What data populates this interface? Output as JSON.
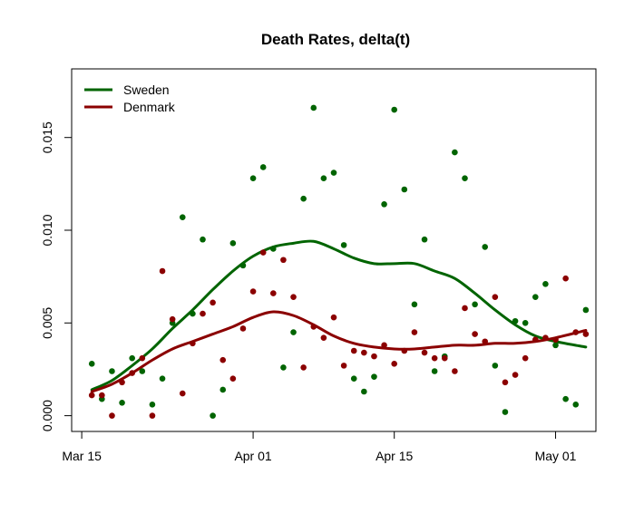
{
  "chart_data": {
    "type": "scatter",
    "title": "Death Rates, delta(t)",
    "xlabel": "",
    "ylabel": "",
    "x_tick_labels": [
      {
        "date": "2020-03-15",
        "label": "Mar 15"
      },
      {
        "date": "2020-04-01",
        "label": "Apr 01"
      },
      {
        "date": "2020-04-15",
        "label": "Apr 15"
      },
      {
        "date": "2020-05-01",
        "label": "May 01"
      }
    ],
    "y_tick_labels": [
      {
        "value": 0.0,
        "label": "0.000"
      },
      {
        "value": 0.005,
        "label": "0.005"
      },
      {
        "value": 0.01,
        "label": "0.010"
      },
      {
        "value": 0.015,
        "label": "0.015"
      }
    ],
    "xlim": [
      "2020-03-14",
      "2020-05-05"
    ],
    "ylim": [
      -0.00085,
      0.0187
    ],
    "grid": false,
    "legend": "top-left",
    "series": [
      {
        "name": "Sweden",
        "color": "#006400",
        "points": [
          [
            "2020-03-16",
            0.0028
          ],
          [
            "2020-03-17",
            0.0009
          ],
          [
            "2020-03-18",
            0.0024
          ],
          [
            "2020-03-19",
            0.0007
          ],
          [
            "2020-03-20",
            0.0031
          ],
          [
            "2020-03-21",
            0.0024
          ],
          [
            "2020-03-22",
            0.0006
          ],
          [
            "2020-03-23",
            0.002
          ],
          [
            "2020-03-24",
            0.005
          ],
          [
            "2020-03-25",
            0.0107
          ],
          [
            "2020-03-26",
            0.0055
          ],
          [
            "2020-03-27",
            0.0095
          ],
          [
            "2020-03-28",
            0.0
          ],
          [
            "2020-03-29",
            0.0014
          ],
          [
            "2020-03-30",
            0.0093
          ],
          [
            "2020-03-31",
            0.0081
          ],
          [
            "2020-04-01",
            0.0128
          ],
          [
            "2020-04-02",
            0.0134
          ],
          [
            "2020-04-03",
            0.009
          ],
          [
            "2020-04-04",
            0.0026
          ],
          [
            "2020-04-05",
            0.0045
          ],
          [
            "2020-04-06",
            0.0117
          ],
          [
            "2020-04-07",
            0.0166
          ],
          [
            "2020-04-08",
            0.0128
          ],
          [
            "2020-04-09",
            0.0131
          ],
          [
            "2020-04-10",
            0.0092
          ],
          [
            "2020-04-11",
            0.002
          ],
          [
            "2020-04-12",
            0.0013
          ],
          [
            "2020-04-13",
            0.0021
          ],
          [
            "2020-04-14",
            0.0114
          ],
          [
            "2020-04-15",
            0.0165
          ],
          [
            "2020-04-16",
            0.0122
          ],
          [
            "2020-04-17",
            0.006
          ],
          [
            "2020-04-18",
            0.0095
          ],
          [
            "2020-04-19",
            0.0024
          ],
          [
            "2020-04-20",
            0.0032
          ],
          [
            "2020-04-21",
            0.0142
          ],
          [
            "2020-04-22",
            0.0128
          ],
          [
            "2020-04-23",
            0.006
          ],
          [
            "2020-04-24",
            0.0091
          ],
          [
            "2020-04-25",
            0.0027
          ],
          [
            "2020-04-26",
            0.0002
          ],
          [
            "2020-04-27",
            0.0051
          ],
          [
            "2020-04-28",
            0.005
          ],
          [
            "2020-04-29",
            0.0064
          ],
          [
            "2020-04-30",
            0.0071
          ],
          [
            "2020-05-01",
            0.0038
          ],
          [
            "2020-05-02",
            0.0009
          ],
          [
            "2020-05-03",
            0.0006
          ],
          [
            "2020-05-04",
            0.0057
          ]
        ],
        "smooth": [
          [
            "2020-03-16",
            0.0014
          ],
          [
            "2020-03-18",
            0.0019
          ],
          [
            "2020-03-20",
            0.0027
          ],
          [
            "2020-03-22",
            0.0036
          ],
          [
            "2020-03-24",
            0.0047
          ],
          [
            "2020-03-26",
            0.0057
          ],
          [
            "2020-03-28",
            0.0068
          ],
          [
            "2020-03-30",
            0.0078
          ],
          [
            "2020-04-01",
            0.0086
          ],
          [
            "2020-04-03",
            0.0091
          ],
          [
            "2020-04-05",
            0.0093
          ],
          [
            "2020-04-07",
            0.0094
          ],
          [
            "2020-04-09",
            0.009
          ],
          [
            "2020-04-11",
            0.0085
          ],
          [
            "2020-04-13",
            0.0082
          ],
          [
            "2020-04-15",
            0.0082
          ],
          [
            "2020-04-17",
            0.0082
          ],
          [
            "2020-04-19",
            0.0078
          ],
          [
            "2020-04-21",
            0.0074
          ],
          [
            "2020-04-23",
            0.0066
          ],
          [
            "2020-04-25",
            0.0057
          ],
          [
            "2020-04-27",
            0.0049
          ],
          [
            "2020-04-29",
            0.0043
          ],
          [
            "2020-05-01",
            0.004
          ],
          [
            "2020-05-04",
            0.0037
          ]
        ]
      },
      {
        "name": "Denmark",
        "color": "#8B0000",
        "points": [
          [
            "2020-03-16",
            0.0011
          ],
          [
            "2020-03-17",
            0.0011
          ],
          [
            "2020-03-18",
            0.0
          ],
          [
            "2020-03-19",
            0.0018
          ],
          [
            "2020-03-20",
            0.0023
          ],
          [
            "2020-03-21",
            0.0031
          ],
          [
            "2020-03-22",
            0.0
          ],
          [
            "2020-03-23",
            0.0078
          ],
          [
            "2020-03-24",
            0.0052
          ],
          [
            "2020-03-25",
            0.0012
          ],
          [
            "2020-03-26",
            0.0039
          ],
          [
            "2020-03-27",
            0.0055
          ],
          [
            "2020-03-28",
            0.0061
          ],
          [
            "2020-03-29",
            0.003
          ],
          [
            "2020-03-30",
            0.002
          ],
          [
            "2020-03-31",
            0.0047
          ],
          [
            "2020-04-01",
            0.0067
          ],
          [
            "2020-04-02",
            0.0088
          ],
          [
            "2020-04-03",
            0.0066
          ],
          [
            "2020-04-04",
            0.0084
          ],
          [
            "2020-04-05",
            0.0064
          ],
          [
            "2020-04-06",
            0.0026
          ],
          [
            "2020-04-07",
            0.0048
          ],
          [
            "2020-04-08",
            0.0042
          ],
          [
            "2020-04-09",
            0.0053
          ],
          [
            "2020-04-10",
            0.0027
          ],
          [
            "2020-04-11",
            0.0035
          ],
          [
            "2020-04-12",
            0.0034
          ],
          [
            "2020-04-13",
            0.0032
          ],
          [
            "2020-04-14",
            0.0038
          ],
          [
            "2020-04-15",
            0.0028
          ],
          [
            "2020-04-16",
            0.0035
          ],
          [
            "2020-04-17",
            0.0045
          ],
          [
            "2020-04-18",
            0.0034
          ],
          [
            "2020-04-19",
            0.0031
          ],
          [
            "2020-04-20",
            0.0031
          ],
          [
            "2020-04-21",
            0.0024
          ],
          [
            "2020-04-22",
            0.0058
          ],
          [
            "2020-04-23",
            0.0044
          ],
          [
            "2020-04-24",
            0.004
          ],
          [
            "2020-04-25",
            0.0064
          ],
          [
            "2020-04-26",
            0.0018
          ],
          [
            "2020-04-27",
            0.0022
          ],
          [
            "2020-04-28",
            0.0031
          ],
          [
            "2020-04-29",
            0.0041
          ],
          [
            "2020-04-30",
            0.0042
          ],
          [
            "2020-05-01",
            0.0041
          ],
          [
            "2020-05-02",
            0.0074
          ],
          [
            "2020-05-03",
            0.0045
          ],
          [
            "2020-05-04",
            0.0044
          ]
        ],
        "smooth": [
          [
            "2020-03-16",
            0.0013
          ],
          [
            "2020-03-18",
            0.0017
          ],
          [
            "2020-03-20",
            0.0023
          ],
          [
            "2020-03-22",
            0.003
          ],
          [
            "2020-03-24",
            0.0036
          ],
          [
            "2020-03-26",
            0.004
          ],
          [
            "2020-03-28",
            0.0044
          ],
          [
            "2020-03-30",
            0.0048
          ],
          [
            "2020-04-01",
            0.0053
          ],
          [
            "2020-04-03",
            0.0056
          ],
          [
            "2020-04-05",
            0.0054
          ],
          [
            "2020-04-07",
            0.0049
          ],
          [
            "2020-04-09",
            0.0043
          ],
          [
            "2020-04-11",
            0.0039
          ],
          [
            "2020-04-13",
            0.0037
          ],
          [
            "2020-04-15",
            0.0036
          ],
          [
            "2020-04-17",
            0.0036
          ],
          [
            "2020-04-19",
            0.0037
          ],
          [
            "2020-04-21",
            0.0038
          ],
          [
            "2020-04-23",
            0.0038
          ],
          [
            "2020-04-25",
            0.0039
          ],
          [
            "2020-04-27",
            0.0039
          ],
          [
            "2020-04-29",
            0.004
          ],
          [
            "2020-05-01",
            0.0042
          ],
          [
            "2020-05-04",
            0.0046
          ]
        ]
      }
    ]
  }
}
